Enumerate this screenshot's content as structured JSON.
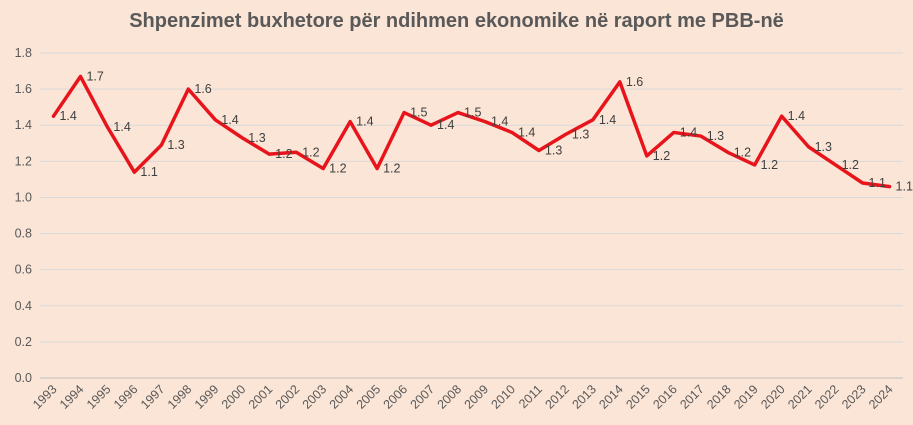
{
  "chart_data": {
    "type": "line",
    "title": "Shpenzimet buxhetore për ndihmen ekonomike në raport me PBB-në",
    "xlabel": "",
    "ylabel": "",
    "ylim": [
      0,
      1.8
    ],
    "y_ticks": [
      "0.0",
      "0.2",
      "0.4",
      "0.6",
      "0.8",
      "1.0",
      "1.2",
      "1.4",
      "1.6",
      "1.8"
    ],
    "grid": true,
    "legend": "none",
    "line_color": "#e8141b",
    "categories": [
      "1993",
      "1994",
      "1995",
      "1996",
      "1997",
      "1998",
      "1999",
      "2000",
      "2001",
      "2002",
      "2003",
      "2004",
      "2005",
      "2006",
      "2007",
      "2008",
      "2009",
      "2010",
      "2011",
      "2012",
      "2013",
      "2014",
      "2015",
      "2016",
      "2017",
      "2018",
      "2019",
      "2020",
      "2021",
      "2022",
      "2023",
      "2024"
    ],
    "series": [
      {
        "values": [
          1.45,
          1.67,
          1.39,
          1.14,
          1.29,
          1.6,
          1.43,
          1.33,
          1.24,
          1.25,
          1.16,
          1.42,
          1.16,
          1.47,
          1.4,
          1.47,
          1.42,
          1.36,
          1.26,
          1.35,
          1.43,
          1.64,
          1.23,
          1.36,
          1.34,
          1.25,
          1.18,
          1.45,
          1.28,
          1.18,
          1.08,
          1.06
        ],
        "labels": [
          "1.4",
          "1.7",
          "1.4",
          "1.1",
          "1.3",
          "1.6",
          "1.4",
          "1.3",
          "1.2",
          "1.2",
          "1.2",
          "1.4",
          "1.2",
          "1.5",
          "1.4",
          "1.5",
          "1.4",
          "1.4",
          "1.3",
          "1.3",
          "1.4",
          "1.6",
          "1.2",
          "1.4",
          "1.3",
          "1.2",
          "1.2",
          "1.4",
          "1.3",
          "1.2",
          "1.1",
          "1.1"
        ]
      }
    ]
  }
}
